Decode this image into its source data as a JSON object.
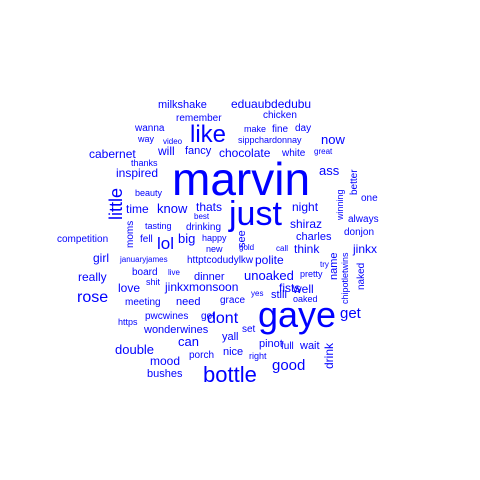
{
  "word_cloud": {
    "color": "#0000ff",
    "words": [
      {
        "text": "marvin"
      },
      {
        "text": "gaye"
      },
      {
        "text": "just"
      },
      {
        "text": "bottle"
      },
      {
        "text": "like"
      },
      {
        "text": "rose"
      },
      {
        "text": "lol"
      },
      {
        "text": "little"
      },
      {
        "text": "dont"
      },
      {
        "text": "get"
      },
      {
        "text": "good"
      },
      {
        "text": "know"
      },
      {
        "text": "can"
      },
      {
        "text": "thats"
      },
      {
        "text": "now"
      },
      {
        "text": "ass"
      },
      {
        "text": "night"
      },
      {
        "text": "time"
      },
      {
        "text": "big"
      },
      {
        "text": "eduaubdedubu"
      },
      {
        "text": "milkshake"
      },
      {
        "text": "remember"
      },
      {
        "text": "chicken"
      },
      {
        "text": "wanna"
      },
      {
        "text": "make"
      },
      {
        "text": "fine"
      },
      {
        "text": "day"
      },
      {
        "text": "way"
      },
      {
        "text": "video"
      },
      {
        "text": "sippchardonnay"
      },
      {
        "text": "cabernet"
      },
      {
        "text": "will"
      },
      {
        "text": "fancy"
      },
      {
        "text": "chocolate"
      },
      {
        "text": "white"
      },
      {
        "text": "great"
      },
      {
        "text": "thanks"
      },
      {
        "text": "inspired"
      },
      {
        "text": "beauty"
      },
      {
        "text": "one"
      },
      {
        "text": "better"
      },
      {
        "text": "winning"
      },
      {
        "text": "always"
      },
      {
        "text": "best"
      },
      {
        "text": "drinking"
      },
      {
        "text": "tasting"
      },
      {
        "text": "shiraz"
      },
      {
        "text": "moms"
      },
      {
        "text": "competition"
      },
      {
        "text": "fell"
      },
      {
        "text": "happy"
      },
      {
        "text": "see"
      },
      {
        "text": "charles"
      },
      {
        "text": "donjon"
      },
      {
        "text": "new"
      },
      {
        "text": "gold"
      },
      {
        "text": "call"
      },
      {
        "text": "think"
      },
      {
        "text": "jinkx"
      },
      {
        "text": "girl"
      },
      {
        "text": "januaryjames"
      },
      {
        "text": "httptcodudylkw"
      },
      {
        "text": "polite"
      },
      {
        "text": "name"
      },
      {
        "text": "chipotletwins"
      },
      {
        "text": "really"
      },
      {
        "text": "board"
      },
      {
        "text": "live"
      },
      {
        "text": "dinner"
      },
      {
        "text": "unoaked"
      },
      {
        "text": "pretty"
      },
      {
        "text": "try"
      },
      {
        "text": "naked"
      },
      {
        "text": "love"
      },
      {
        "text": "shit"
      },
      {
        "text": "jinkxmonsoon"
      },
      {
        "text": "fists"
      },
      {
        "text": "well"
      },
      {
        "text": "meeting"
      },
      {
        "text": "need"
      },
      {
        "text": "grace"
      },
      {
        "text": "yes"
      },
      {
        "text": "still"
      },
      {
        "text": "oaked"
      },
      {
        "text": "pwcwines"
      },
      {
        "text": "got"
      },
      {
        "text": "https"
      },
      {
        "text": "wonderwines"
      },
      {
        "text": "yall"
      },
      {
        "text": "set"
      },
      {
        "text": "pinot"
      },
      {
        "text": "full"
      },
      {
        "text": "wait"
      },
      {
        "text": "drink"
      },
      {
        "text": "double"
      },
      {
        "text": "porch"
      },
      {
        "text": "nice"
      },
      {
        "text": "right"
      },
      {
        "text": "mood"
      },
      {
        "text": "bushes"
      }
    ]
  }
}
